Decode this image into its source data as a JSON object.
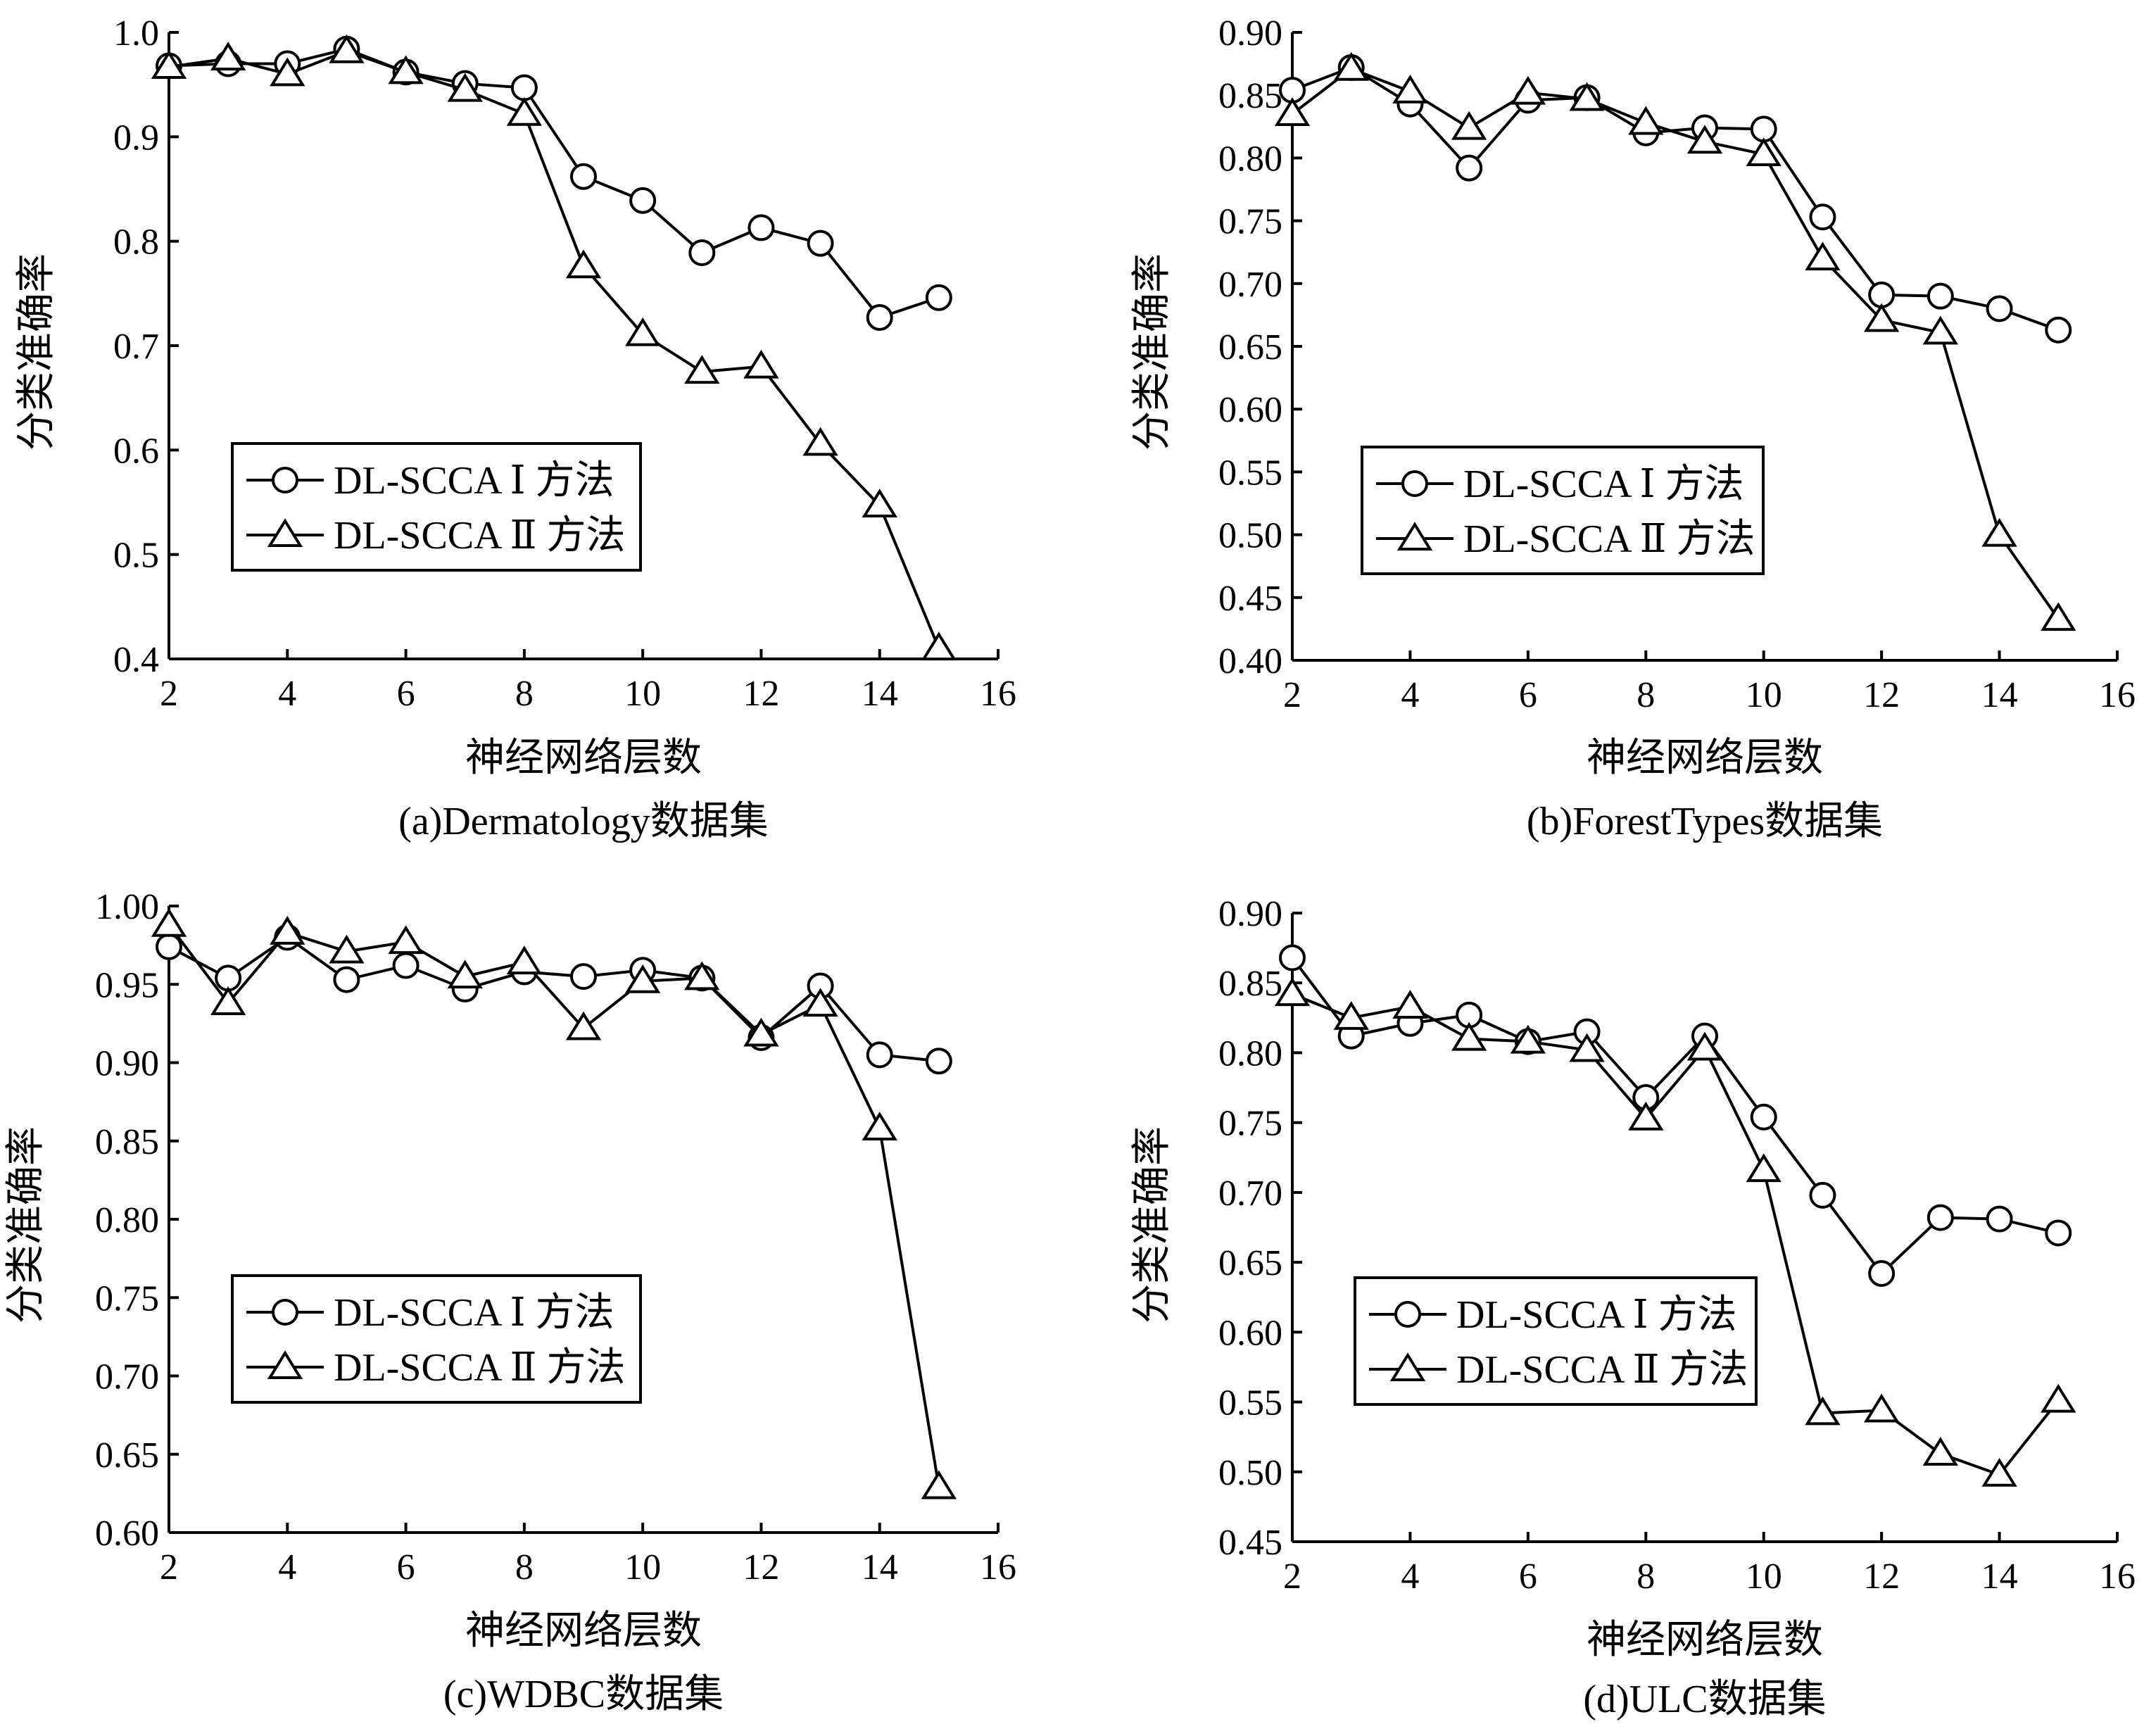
{
  "colors": {
    "line": "#000000",
    "background": "#ffffff"
  },
  "chart_data": [
    {
      "type": "line",
      "caption": "(a)Dermatology数据集",
      "xlabel": "神经网络层数",
      "ylabel": "分类准确率",
      "xlim": [
        2,
        16
      ],
      "ylim": [
        0.4,
        1.0
      ],
      "xticks": [
        "2",
        "4",
        "6",
        "8",
        "10",
        "12",
        "14",
        "16"
      ],
      "yticks": [
        "0.4",
        "0.5",
        "0.6",
        "0.7",
        "0.8",
        "0.9",
        "1.0"
      ],
      "legend_position": "center-left",
      "x": [
        2,
        3,
        4,
        5,
        6,
        7,
        8,
        9,
        10,
        11,
        12,
        13,
        14,
        15
      ],
      "series": [
        {
          "name": "DL-SCCA Ⅰ 方法",
          "marker": "circle",
          "values": [
            0.968,
            0.97,
            0.97,
            0.984,
            0.962,
            0.951,
            0.947,
            0.862,
            0.839,
            0.789,
            0.813,
            0.798,
            0.727,
            0.746
          ]
        },
        {
          "name": "DL-SCCA Ⅱ 方法",
          "marker": "triangle",
          "values": [
            0.967,
            0.975,
            0.96,
            0.982,
            0.962,
            0.945,
            0.922,
            0.776,
            0.711,
            0.675,
            0.68,
            0.606,
            0.547,
            0.41
          ]
        }
      ]
    },
    {
      "type": "line",
      "caption": "(b)ForestTypes数据集",
      "xlabel": "神经网络层数",
      "ylabel": "分类准确率",
      "xlim": [
        2,
        16
      ],
      "ylim": [
        0.4,
        0.9
      ],
      "xticks": [
        "2",
        "4",
        "6",
        "8",
        "10",
        "12",
        "14",
        "16"
      ],
      "yticks": [
        "0.40",
        "0.45",
        "0.50",
        "0.55",
        "0.60",
        "0.65",
        "0.70",
        "0.75",
        "0.80",
        "0.85",
        "0.90"
      ],
      "legend_position": "center-left",
      "x": [
        2,
        3,
        4,
        5,
        6,
        7,
        8,
        9,
        10,
        11,
        12,
        13,
        14,
        15
      ],
      "series": [
        {
          "name": "DL-SCCA Ⅰ 方法",
          "marker": "circle",
          "values": [
            0.854,
            0.872,
            0.843,
            0.792,
            0.846,
            0.848,
            0.82,
            0.824,
            0.823,
            0.753,
            0.691,
            0.69,
            0.68,
            0.663
          ]
        },
        {
          "name": "DL-SCCA Ⅱ 方法",
          "marker": "triangle",
          "values": [
            0.835,
            0.871,
            0.853,
            0.824,
            0.852,
            0.847,
            0.828,
            0.813,
            0.803,
            0.72,
            0.671,
            0.661,
            0.5,
            0.433
          ]
        }
      ]
    },
    {
      "type": "line",
      "caption": "(c)WDBC数据集",
      "xlabel": "神经网络层数",
      "ylabel": "分类准确率",
      "xlim": [
        2,
        16
      ],
      "ylim": [
        0.6,
        1.0
      ],
      "xticks": [
        "2",
        "4",
        "6",
        "8",
        "10",
        "12",
        "14",
        "16"
      ],
      "yticks": [
        "0.60",
        "0.65",
        "0.70",
        "0.75",
        "0.80",
        "0.85",
        "0.90",
        "0.95",
        "1.00"
      ],
      "legend_position": "center-left",
      "x": [
        2,
        3,
        4,
        5,
        6,
        7,
        8,
        9,
        10,
        11,
        12,
        13,
        14,
        15
      ],
      "series": [
        {
          "name": "DL-SCCA Ⅰ 方法",
          "marker": "circle",
          "values": [
            0.974,
            0.954,
            0.98,
            0.953,
            0.962,
            0.947,
            0.958,
            0.955,
            0.959,
            0.954,
            0.916,
            0.949,
            0.905,
            0.901
          ]
        },
        {
          "name": "DL-SCCA Ⅱ 方法",
          "marker": "triangle",
          "values": [
            0.988,
            0.938,
            0.983,
            0.971,
            0.977,
            0.955,
            0.964,
            0.922,
            0.952,
            0.954,
            0.918,
            0.937,
            0.858,
            0.629
          ]
        }
      ]
    },
    {
      "type": "line",
      "caption": "(d)ULC数据集",
      "xlabel": "神经网络层数",
      "ylabel": "分类准确率",
      "xlim": [
        2,
        16
      ],
      "ylim": [
        0.45,
        0.9
      ],
      "xticks": [
        "2",
        "4",
        "6",
        "8",
        "10",
        "12",
        "14",
        "16"
      ],
      "yticks": [
        "0.45",
        "0.50",
        "0.55",
        "0.60",
        "0.65",
        "0.70",
        "0.75",
        "0.80",
        "0.85",
        "0.90"
      ],
      "legend_position": "lower-left",
      "x": [
        2,
        3,
        4,
        5,
        6,
        7,
        8,
        9,
        10,
        11,
        12,
        13,
        14,
        15
      ],
      "series": [
        {
          "name": "DL-SCCA Ⅰ 方法",
          "marker": "circle",
          "values": [
            0.868,
            0.812,
            0.821,
            0.827,
            0.808,
            0.815,
            0.768,
            0.812,
            0.754,
            0.698,
            0.642,
            0.682,
            0.681,
            0.671
          ]
        },
        {
          "name": "DL-SCCA Ⅱ 方法",
          "marker": "triangle",
          "values": [
            0.842,
            0.825,
            0.833,
            0.81,
            0.808,
            0.802,
            0.753,
            0.803,
            0.716,
            0.542,
            0.544,
            0.513,
            0.498,
            0.551
          ]
        }
      ]
    }
  ]
}
